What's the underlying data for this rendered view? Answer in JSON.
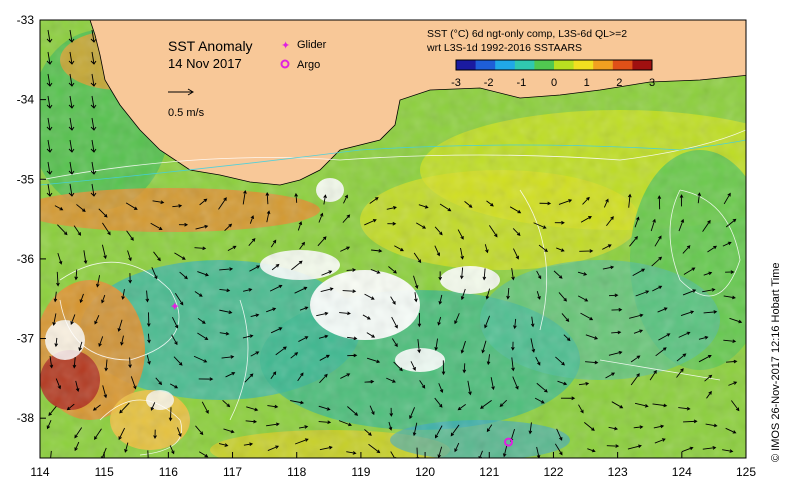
{
  "map": {
    "title": "SST Anomaly",
    "date": "14 Nov 2017",
    "scale_label": "0.5 m/s",
    "legend": {
      "glider_label": "Glider",
      "argo_label": "Argo",
      "glider_color": "#e020e0",
      "argo_color": "#e020e0"
    },
    "colorbar": {
      "line1": "SST (°C) 6d ngt-only comp, L3S-6d QL>=2",
      "line2": "wrt L3S-1d 1992-2016 SSTAARS",
      "ticks": [
        "-3",
        "-2",
        "-1",
        "0",
        "1",
        "2",
        "3"
      ],
      "colors": [
        "#1a1aa0",
        "#1e5ed8",
        "#20a8e8",
        "#30c8b0",
        "#50c850",
        "#b8e020",
        "#f0e020",
        "#f0a020",
        "#e05018",
        "#a01010"
      ]
    },
    "x_ticks": [
      "114",
      "115",
      "116",
      "117",
      "118",
      "119",
      "120",
      "121",
      "122",
      "123",
      "124",
      "125"
    ],
    "y_ticks": [
      "-33",
      "-34",
      "-35",
      "-36",
      "-37",
      "-38"
    ],
    "credit": "© IMOS 26-Nov-2017 12:16 Hobart Time",
    "land_color": "#f8c898",
    "markers": [
      {
        "type": "glider",
        "lon": 116.1,
        "lat": -36.6
      },
      {
        "type": "argo",
        "lon": 121.3,
        "lat": -38.3
      }
    ]
  }
}
